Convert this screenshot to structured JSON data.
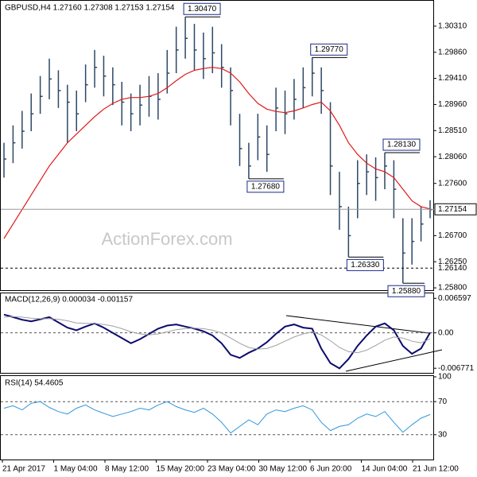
{
  "chart_data": [
    {
      "type": "ohlc",
      "title": "GBPUSD,H4  1.27160 1.27308 1.27153 1.27154",
      "watermark": "ActionForex.com",
      "color": "#2c4866",
      "high": [
        1.283,
        1.286,
        1.2885,
        1.2915,
        1.2945,
        1.2975,
        1.2955,
        1.293,
        1.292,
        1.2965,
        1.299,
        1.298,
        1.296,
        1.2935,
        1.2915,
        1.293,
        1.2945,
        1.295,
        1.299,
        1.303,
        1.3047,
        1.3035,
        1.302,
        1.303,
        1.3,
        1.296,
        1.288,
        1.283,
        1.288,
        1.286,
        1.2925,
        1.292,
        1.294,
        1.296,
        1.2977,
        1.296,
        1.29,
        1.278,
        1.272,
        1.28,
        1.281,
        1.2805,
        1.2813,
        1.28,
        1.27,
        1.27,
        1.272,
        1.2731
      ],
      "low": [
        1.277,
        1.2795,
        1.282,
        1.285,
        1.288,
        1.2905,
        1.289,
        1.283,
        1.285,
        1.29,
        1.2925,
        1.291,
        1.2895,
        1.286,
        1.285,
        1.286,
        1.2875,
        1.287,
        1.2915,
        1.295,
        1.2975,
        1.2955,
        1.294,
        1.295,
        1.2925,
        1.286,
        1.279,
        1.2768,
        1.28,
        1.278,
        1.285,
        1.2845,
        1.287,
        1.289,
        1.291,
        1.288,
        1.274,
        1.268,
        1.2633,
        1.27,
        1.274,
        1.273,
        1.275,
        1.27,
        1.2588,
        1.262,
        1.266,
        1.27
      ],
      "close": [
        1.2802,
        1.283,
        1.285,
        1.288,
        1.291,
        1.294,
        1.292,
        1.29,
        1.288,
        1.293,
        1.296,
        1.2945,
        1.293,
        1.29,
        1.288,
        1.2895,
        1.291,
        1.2905,
        1.295,
        1.299,
        1.301,
        1.299,
        1.2975,
        1.2985,
        1.296,
        1.292,
        1.282,
        1.279,
        1.284,
        1.281,
        1.289,
        1.288,
        1.2905,
        1.2925,
        1.295,
        1.292,
        1.279,
        1.272,
        1.267,
        1.276,
        1.278,
        1.277,
        1.279,
        1.275,
        1.264,
        1.266,
        1.269,
        1.2715
      ],
      "moving_average": {
        "color": "#e01818",
        "values": [
          1.2665,
          1.269,
          1.2715,
          1.274,
          1.2765,
          1.279,
          1.281,
          1.283,
          1.2845,
          1.286,
          1.2875,
          1.2888,
          1.2898,
          1.2905,
          1.2908,
          1.2908,
          1.291,
          1.2915,
          1.2925,
          1.2937,
          1.2948,
          1.2955,
          1.2958,
          1.296,
          1.2958,
          1.295,
          1.2935,
          1.2915,
          1.2898,
          1.2888,
          1.2884,
          1.2882,
          1.2885,
          1.289,
          1.2896,
          1.29,
          1.2885,
          1.286,
          1.283,
          1.281,
          1.2795,
          1.2785,
          1.278,
          1.277,
          1.275,
          1.273,
          1.272,
          1.2716
        ]
      },
      "annotations": [
        {
          "value": 1.3047,
          "label": "1.30470"
        },
        {
          "value": 1.2977,
          "label": "1.29770"
        },
        {
          "value": 1.2768,
          "label": "1.27680"
        },
        {
          "value": 1.2813,
          "label": "1.28130"
        },
        {
          "value": 1.2633,
          "label": "1.26330"
        },
        {
          "value": 1.2588,
          "label": "1.25880"
        }
      ],
      "current_price": {
        "value": 1.27154,
        "label": "1.27154"
      },
      "level": {
        "value": 1.2614,
        "label": "1.26140"
      },
      "ylim": [
        1.2576,
        1.3072
      ],
      "yticks": [
        {
          "value": 1.3031,
          "label": "1.30310"
        },
        {
          "value": 1.2986,
          "label": "1.29860"
        },
        {
          "value": 1.2941,
          "label": "1.29410"
        },
        {
          "value": 1.2896,
          "label": "1.28960"
        },
        {
          "value": 1.2851,
          "label": "1.28510"
        },
        {
          "value": 1.2806,
          "label": "1.28060"
        },
        {
          "value": 1.276,
          "label": "1.27600"
        },
        {
          "value": 1.267,
          "label": "1.26700"
        },
        {
          "value": 1.2625,
          "label": "1.26250"
        },
        {
          "value": 1.258,
          "label": "1.25800"
        }
      ]
    },
    {
      "type": "line",
      "title": "MACD(12,26,9) 0.000034 -0.001157",
      "series": [
        {
          "color": "#0b0b6e",
          "values": [
            0.0035,
            0.003,
            0.0025,
            0.0022,
            0.0026,
            0.003,
            0.002,
            0.001,
            0.0005,
            0.0012,
            0.0018,
            0.001,
            0.0,
            -0.001,
            -0.002,
            -0.0012,
            -0.0002,
            0.0008,
            0.0014,
            0.0016,
            0.0012,
            0.0008,
            0.0003,
            -0.0005,
            -0.002,
            -0.0042,
            -0.0048,
            -0.0038,
            -0.003,
            -0.0018,
            -0.0002,
            0.0012,
            0.0016,
            0.001,
            0.0008,
            -0.003,
            -0.0058,
            -0.0068,
            -0.005,
            -0.0025,
            -0.0005,
            0.0012,
            0.0018,
            0.0005,
            -0.0025,
            -0.004,
            -0.003,
            3.4e-05
          ]
        },
        {
          "color": "#a0a0a0",
          "values": [
            0.003,
            0.0031,
            0.003,
            0.0028,
            0.0027,
            0.0027,
            0.0026,
            0.0023,
            0.0019,
            0.0018,
            0.0018,
            0.0016,
            0.0013,
            0.0008,
            0.0002,
            -0.0002,
            -0.0004,
            -0.0002,
            0.0002,
            0.0006,
            0.0008,
            0.0009,
            0.0008,
            0.0005,
            0.0,
            -0.001,
            -0.002,
            -0.0028,
            -0.0031,
            -0.003,
            -0.0024,
            -0.0016,
            -0.0008,
            -0.0002,
            0.0002,
            -0.0004,
            -0.0015,
            -0.0028,
            -0.0036,
            -0.0038,
            -0.0033,
            -0.0024,
            -0.0014,
            -0.0008,
            -0.001,
            -0.0016,
            -0.0019,
            -0.001157
          ]
        }
      ],
      "ylim": [
        -0.0075,
        0.0074
      ],
      "yticks": [
        0.006597,
        {
          "value": 0,
          "label": "0.00"
        },
        -0.006771
      ],
      "dashed_levels": [
        0
      ]
    },
    {
      "type": "line",
      "title": "RSI(14) 54.4605",
      "series": [
        {
          "color": "#2f96dc",
          "values": [
            62,
            65,
            60,
            68,
            70,
            63,
            58,
            55,
            62,
            66,
            60,
            56,
            52,
            55,
            58,
            62,
            60,
            66,
            70,
            64,
            60,
            57,
            62,
            55,
            45,
            32,
            40,
            48,
            42,
            55,
            60,
            58,
            62,
            65,
            60,
            45,
            35,
            40,
            42,
            50,
            55,
            52,
            58,
            45,
            33,
            42,
            50,
            54.4605
          ]
        }
      ],
      "ylim": [
        0,
        100
      ],
      "yticks": [
        100,
        70,
        30
      ],
      "dashed_levels": [
        70,
        30
      ],
      "x_labels": [
        "21 Apr 2017",
        "1 May 04:00",
        "8 May 12:00",
        "15 May 20:00",
        "23 May 04:00",
        "30 May 12:00",
        "6 Jun 20:00",
        "14 Jun 04:00",
        "21 Jun 12:00"
      ]
    }
  ]
}
